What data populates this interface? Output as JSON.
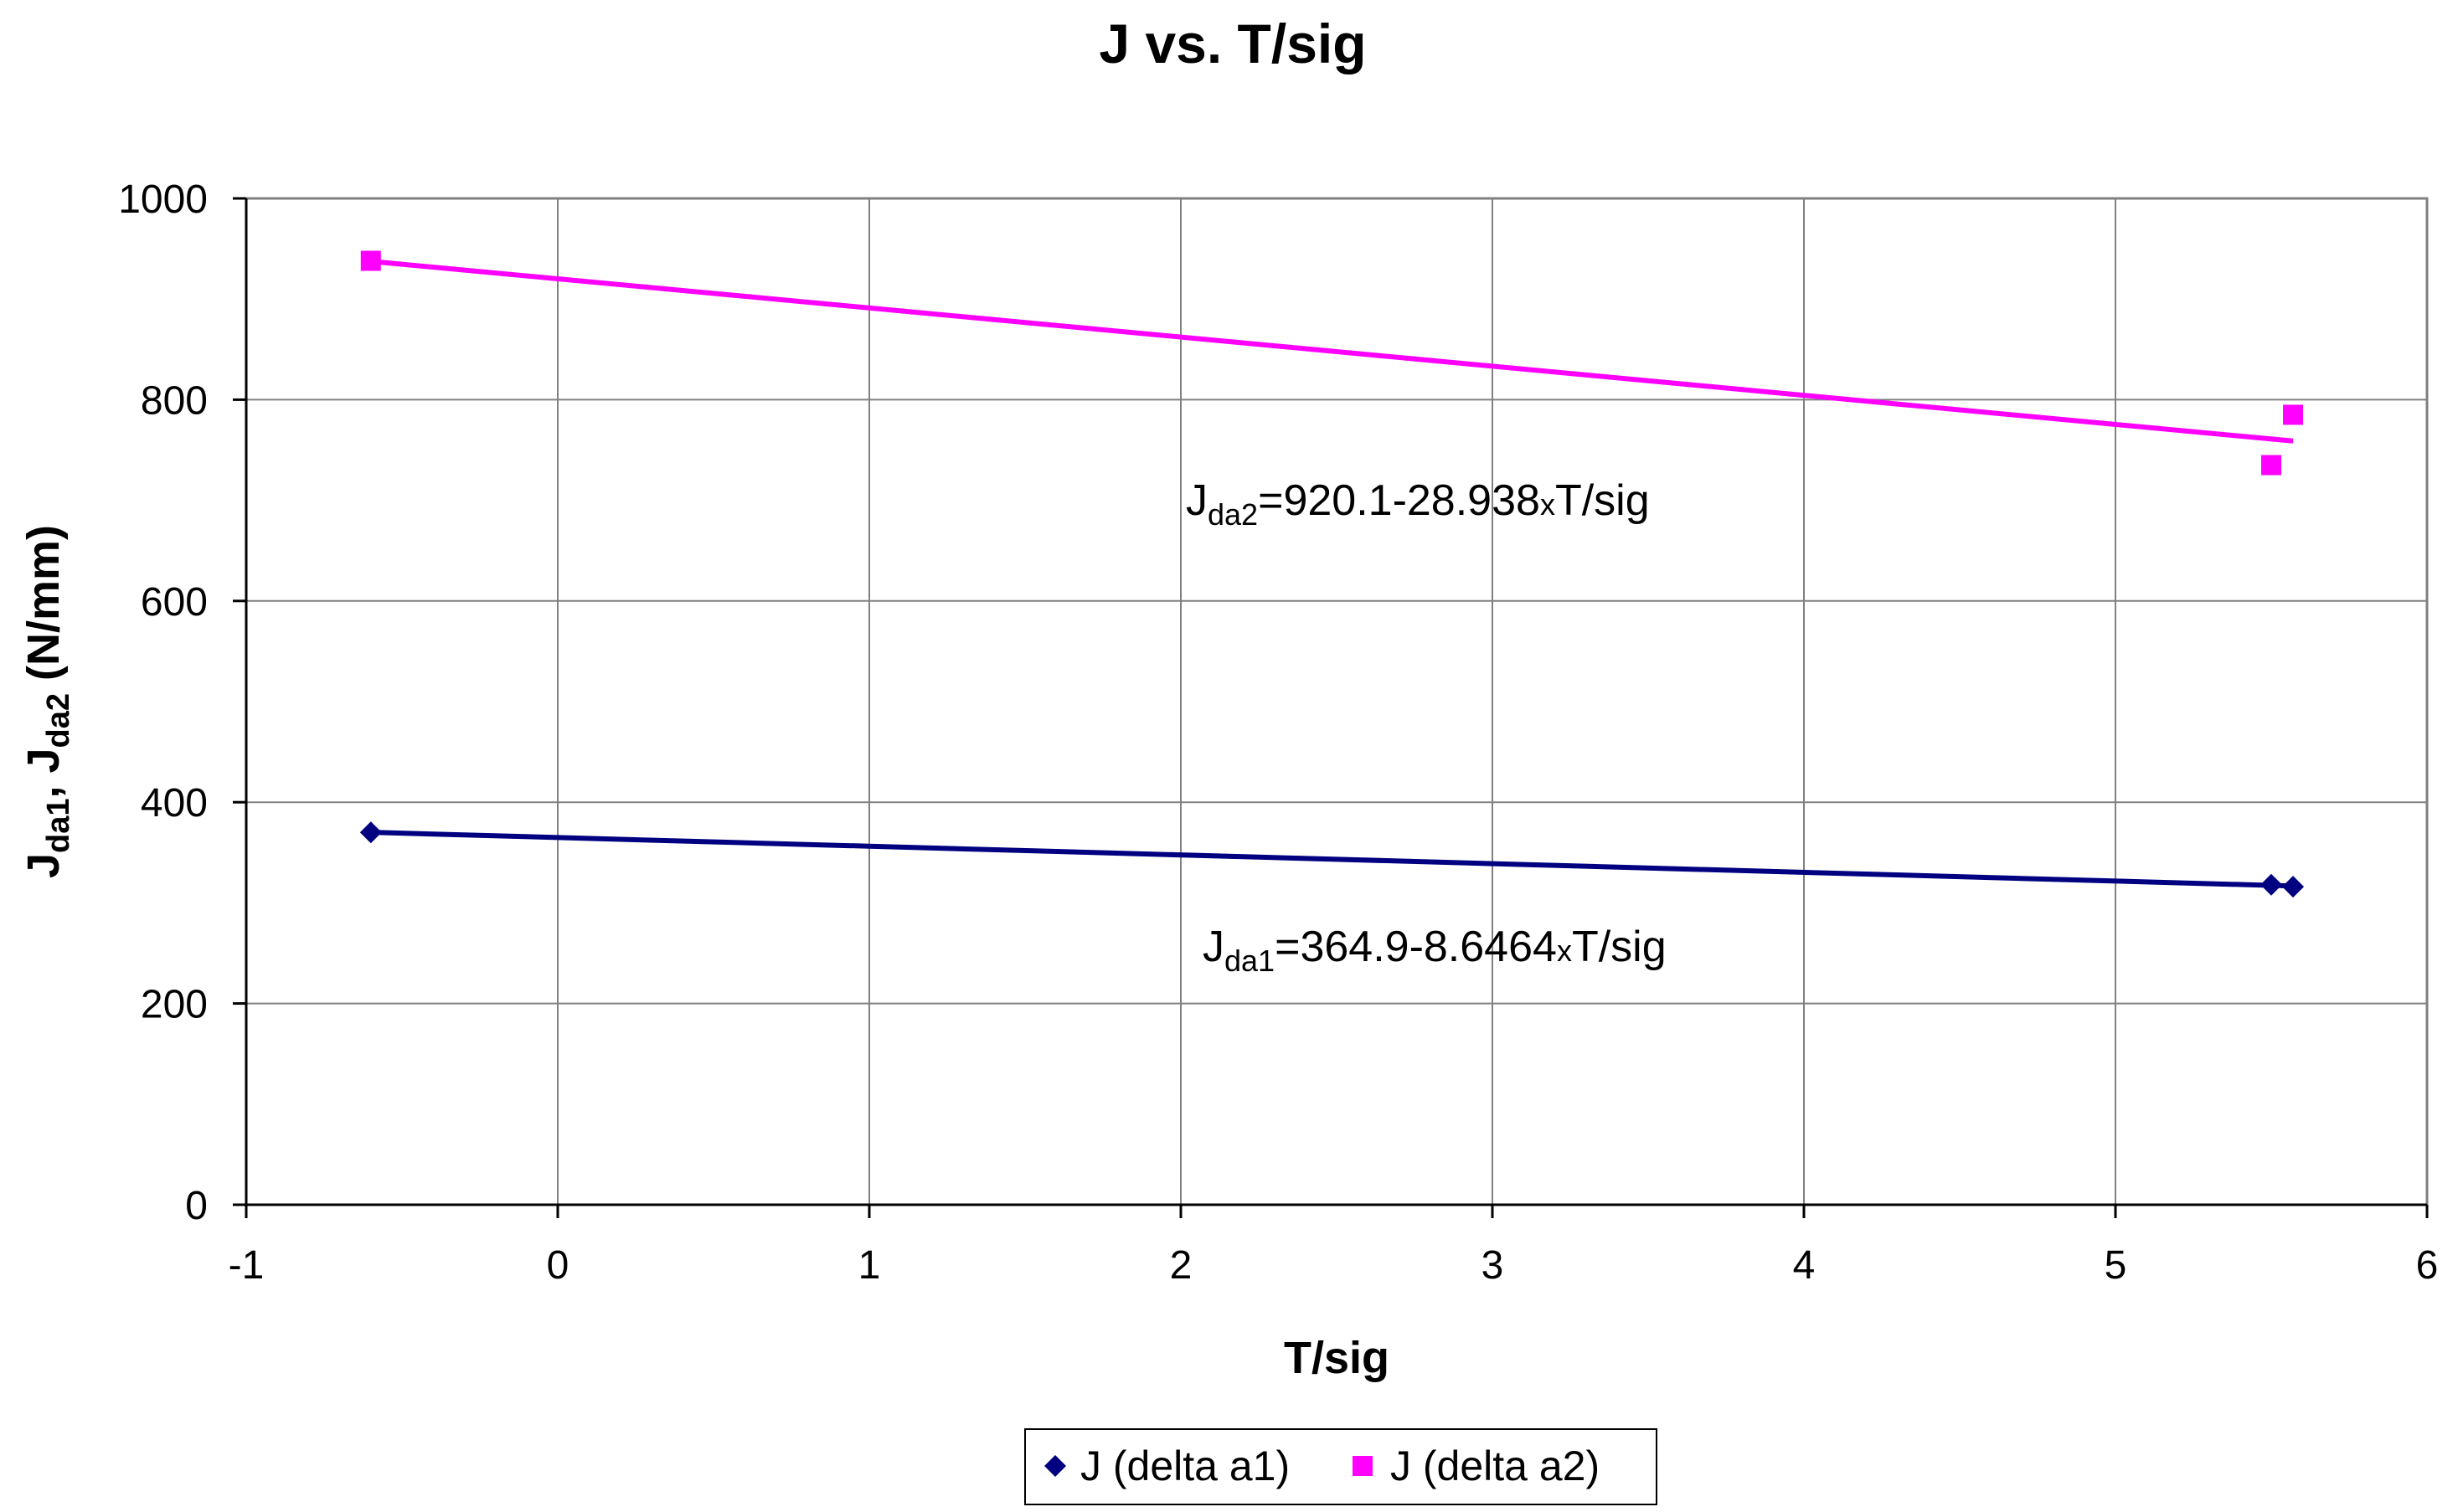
{
  "chart_data": {
    "type": "scatter",
    "title": "J vs. T/sig",
    "xlabel": "T/sig",
    "ylabel": {
      "parts": [
        "J",
        "da1",
        ", ",
        "J",
        "da2",
        "  (N/mm)"
      ]
    },
    "xlim": [
      -1,
      6
    ],
    "ylim": [
      0,
      1000
    ],
    "xticks": [
      "-1",
      "0",
      "1",
      "2",
      "3",
      "4",
      "5",
      "6"
    ],
    "yticks": [
      "0",
      "200",
      "400",
      "600",
      "800",
      "1000"
    ],
    "grid": true,
    "legend_position": "bottom",
    "series": [
      {
        "name": "J (delta a1)",
        "color": "#000080",
        "marker": "diamond",
        "x": [
          -0.6,
          5.5,
          5.57
        ],
        "y": [
          370,
          318,
          316
        ],
        "trendline": {
          "intercept": 364.9,
          "slope": -8.6464
        },
        "equation": {
          "parts": [
            "J",
            "da1",
            "=364.9-8.6464",
            "x",
            "T/sig"
          ]
        }
      },
      {
        "name": "J (delta a2)",
        "color": "#FF00FF",
        "marker": "square",
        "x": [
          -0.6,
          5.5,
          5.57
        ],
        "y": [
          938,
          735,
          785
        ],
        "trendline": {
          "intercept": 920.1,
          "slope": -28.938
        },
        "equation": {
          "parts": [
            "J",
            "da2",
            "=920.1-28.938",
            "x",
            "T/sig"
          ]
        }
      }
    ]
  }
}
